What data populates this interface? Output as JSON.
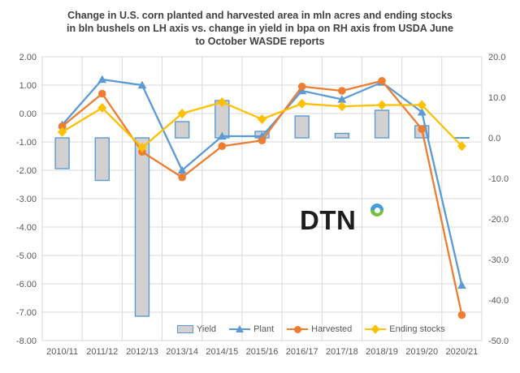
{
  "title": {
    "lines": [
      "Change in U.S. corn planted and harvested area in mln acres and ending stocks",
      "in bln bushels on LH axis vs. change in yield in bpa on RH axis from USDA June",
      "to October WASDE reports"
    ]
  },
  "logo": {
    "text": "DTN"
  },
  "colors": {
    "bar_fill": "#d2d0d0",
    "bar_border": "#5b9bd5",
    "plant_blue": "#5b9bd5",
    "harvested_orange": "#ed7d31",
    "ending_stocks_yellow": "#ffc000",
    "gridline": "#d9d9d9",
    "axis_text": "#595959",
    "title_text": "#404040",
    "logo_blue": "#41a0d9",
    "logo_green": "#72bf44"
  },
  "chart_data": {
    "type": "bar",
    "subtype": "combo-bar-line-dual-axis",
    "categories": [
      "2010/11",
      "2011/12",
      "2012/13",
      "2013/14",
      "2014/15",
      "2015/16",
      "2016/17",
      "2017/18",
      "2018/19",
      "2019/20",
      "2020/21"
    ],
    "series": [
      {
        "name": "Yield",
        "type": "bar",
        "axis": "right",
        "marker": "bar-swatch",
        "values": [
          -7.6,
          -10.5,
          -44.0,
          4.0,
          9.2,
          1.6,
          5.4,
          1.1,
          6.8,
          3.0,
          0.0
        ]
      },
      {
        "name": "Plant",
        "type": "line",
        "axis": "left",
        "marker": "triangle",
        "values": [
          -0.4,
          1.2,
          1.0,
          -2.0,
          -0.8,
          -0.8,
          0.8,
          0.5,
          1.1,
          0.05,
          -6.05
        ]
      },
      {
        "name": "Harvested",
        "type": "line",
        "axis": "left",
        "marker": "circle",
        "values": [
          -0.45,
          0.7,
          -1.35,
          -2.25,
          -1.15,
          -0.95,
          0.95,
          0.8,
          1.15,
          -0.55,
          -7.1
        ]
      },
      {
        "name": "Ending stocks",
        "type": "line",
        "axis": "left",
        "marker": "diamond",
        "values": [
          -0.65,
          0.2,
          -1.2,
          0.0,
          0.4,
          -0.2,
          0.35,
          0.25,
          0.3,
          0.3,
          -1.15
        ]
      }
    ],
    "left_axis": {
      "min": -8,
      "max": 2,
      "step": 1,
      "tick_labels": [
        "2.00",
        "1.00",
        "0.00",
        "-1.00",
        "-2.00",
        "-3.00",
        "-4.00",
        "-5.00",
        "-6.00",
        "-7.00",
        "-8.00"
      ]
    },
    "right_axis": {
      "min": -50,
      "max": 20,
      "step": 10,
      "tick_labels": [
        "20.0",
        "10.0",
        "0.0",
        "-10.0",
        "-20.0",
        "-30.0",
        "-40.0",
        "-50.0"
      ]
    },
    "grid": true,
    "legend_position": "bottom-inside"
  }
}
